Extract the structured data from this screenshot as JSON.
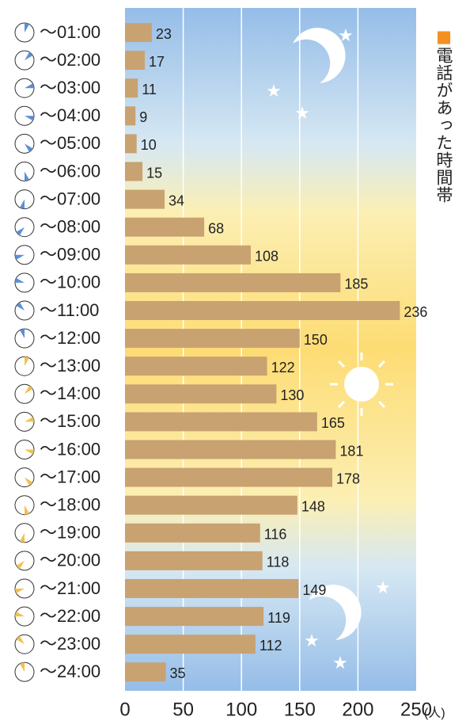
{
  "chart_data": {
    "type": "barh",
    "title": "電話があった時間帯",
    "categories": [
      "〜01:00",
      "〜02:00",
      "〜03:00",
      "〜04:00",
      "〜05:00",
      "〜06:00",
      "〜07:00",
      "〜08:00",
      "〜09:00",
      "〜10:00",
      "〜11:00",
      "〜12:00",
      "〜13:00",
      "〜14:00",
      "〜15:00",
      "〜16:00",
      "〜17:00",
      "〜18:00",
      "〜19:00",
      "〜20:00",
      "〜21:00",
      "〜22:00",
      "〜23:00",
      "〜24:00"
    ],
    "values": [
      23,
      17,
      11,
      9,
      10,
      15,
      34,
      68,
      108,
      185,
      236,
      150,
      122,
      130,
      165,
      181,
      178,
      148,
      116,
      118,
      149,
      119,
      112,
      35
    ],
    "color": "#c9a271",
    "xlim": [
      0,
      250
    ],
    "xticks": [
      0,
      50,
      100,
      150,
      200,
      250
    ],
    "x_unit": "(人)",
    "grid": true
  }
}
